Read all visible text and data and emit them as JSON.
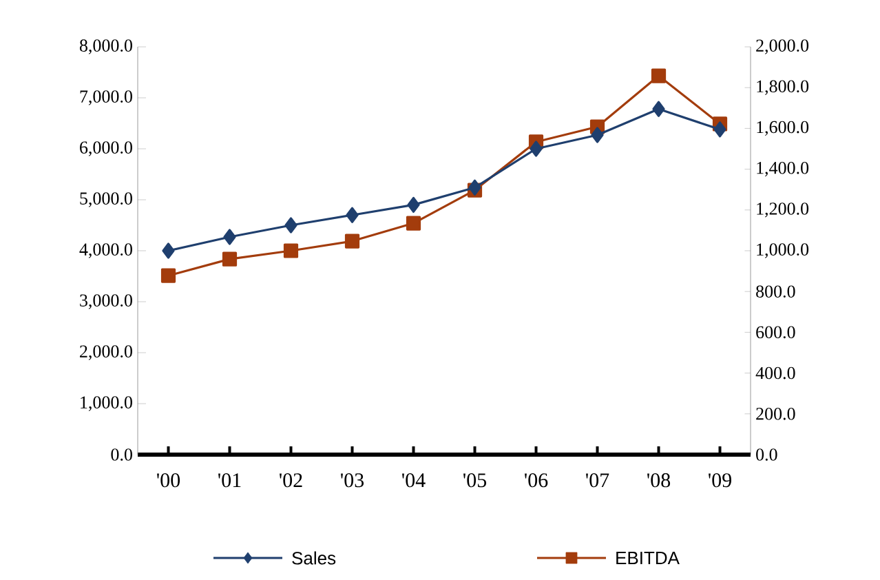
{
  "chart_data": {
    "type": "line",
    "categories": [
      "'00",
      "'01",
      "'02",
      "'03",
      "'04",
      "'05",
      "'06",
      "'07",
      "'08",
      "'09"
    ],
    "series": [
      {
        "name": "Sales",
        "color": "#1f3f6e",
        "marker": "diamond",
        "values": [
          4000,
          4270,
          4500,
          4700,
          4900,
          5240,
          6000,
          6270,
          6780,
          6380
        ]
      },
      {
        "name": "EBITDA",
        "color": "#a33c0c",
        "marker": "square",
        "axis": "y2",
        "values": [
          878,
          959,
          1000,
          1047,
          1135,
          1297,
          1534,
          1608,
          1858,
          1622
        ]
      }
    ],
    "ylim": [
      0,
      8000
    ],
    "yticks": [
      {
        "value": 0,
        "label": "0.0"
      },
      {
        "value": 1000,
        "label": "1,000.0"
      },
      {
        "value": 2000,
        "label": "2,000.0"
      },
      {
        "value": 3000,
        "label": "3,000.0"
      },
      {
        "value": 4000,
        "label": "4,000.0"
      },
      {
        "value": 5000,
        "label": "5,000.0"
      },
      {
        "value": 6000,
        "label": "6,000.0"
      },
      {
        "value": 7000,
        "label": "7,000.0"
      },
      {
        "value": 8000,
        "label": "8,000.0"
      }
    ],
    "y2lim": [
      0,
      2000
    ],
    "y2ticks": [
      {
        "value": 0,
        "label": "0.0"
      },
      {
        "value": 200,
        "label": "200.0"
      },
      {
        "value": 400,
        "label": "400.0"
      },
      {
        "value": 600,
        "label": "600.0"
      },
      {
        "value": 800,
        "label": "800.0"
      },
      {
        "value": 1000,
        "label": "1,000.0"
      },
      {
        "value": 1200,
        "label": "1,200.0"
      },
      {
        "value": 1400,
        "label": "1,400.0"
      },
      {
        "value": 1600,
        "label": "1,600.0"
      },
      {
        "value": 1800,
        "label": "1,800.0"
      },
      {
        "value": 2000,
        "label": "2,000.0"
      }
    ],
    "grid": false,
    "legend": "bottom"
  }
}
